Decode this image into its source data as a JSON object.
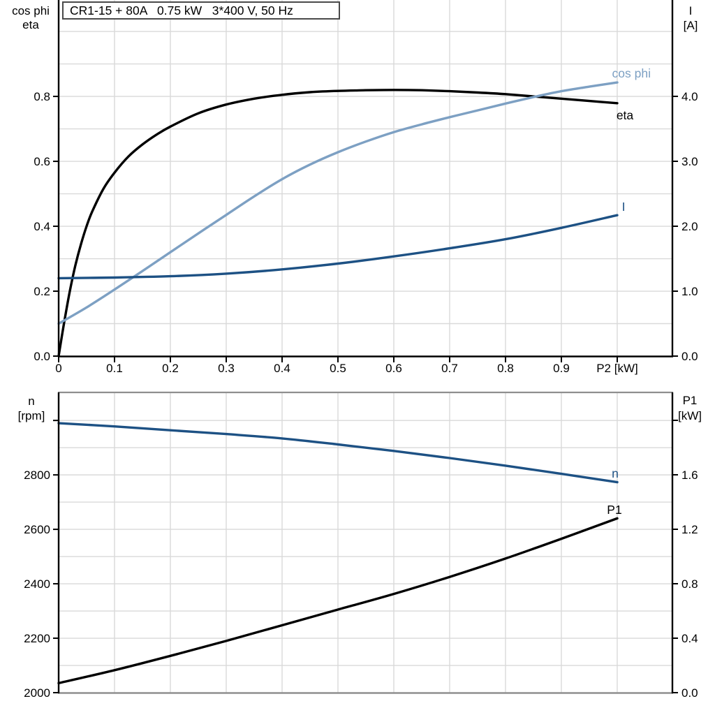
{
  "title": "CR1-15 + 80A   0.75 kW   3*400 V, 50 Hz",
  "colors": {
    "black": "#000000",
    "dark_blue": "#1d5184",
    "light_blue": "#7da0c3",
    "grid": "#d9d9d9",
    "panel_border": "#8f8f8f",
    "text": "#000000"
  },
  "chart_data": [
    {
      "type": "line",
      "title": "CR1-15 + 80A   0.75 kW   3*400 V, 50 Hz",
      "x_label": "P2 [kW]",
      "xlim": [
        0,
        1.0988
      ],
      "x_tick_values": [
        0,
        0.1,
        0.2,
        0.3,
        0.4,
        0.5,
        0.6,
        0.7,
        0.8,
        0.9,
        1.0
      ],
      "x_tick_labels": [
        "0",
        "0.1",
        "0.2",
        "0.3",
        "0.4",
        "0.5",
        "0.6",
        "0.7",
        "0.8",
        "0.9",
        ""
      ],
      "grid": true,
      "left_axis": {
        "label": [
          "cos phi",
          "eta"
        ],
        "lim": [
          0,
          1.097
        ],
        "tick_values": [
          0,
          0.2,
          0.4,
          0.6,
          0.8
        ],
        "tick_labels": [
          "0.0",
          "0.2",
          "0.4",
          "0.6",
          "0.8"
        ],
        "minor_step": 0.1
      },
      "right_axis": {
        "label": [
          "I",
          "[A]"
        ],
        "lim": [
          0,
          5.484
        ],
        "tick_values": [
          0,
          1,
          2,
          3,
          4
        ],
        "tick_labels": [
          "0.0",
          "1.0",
          "2.0",
          "3.0",
          "4.0"
        ]
      },
      "series": [
        {
          "name": "eta",
          "axis": "left",
          "color": "black",
          "x": [
            0,
            0.01,
            0.02,
            0.03,
            0.04,
            0.05,
            0.06,
            0.08,
            0.1,
            0.125,
            0.15,
            0.175,
            0.2,
            0.25,
            0.3,
            0.35,
            0.4,
            0.45,
            0.5,
            0.55,
            0.6,
            0.65,
            0.7,
            0.75,
            0.8,
            0.85,
            0.9,
            0.95,
            1.0
          ],
          "y": [
            0,
            0.105,
            0.2,
            0.28,
            0.345,
            0.4,
            0.445,
            0.515,
            0.565,
            0.615,
            0.652,
            0.682,
            0.707,
            0.748,
            0.775,
            0.793,
            0.805,
            0.813,
            0.817,
            0.819,
            0.82,
            0.819,
            0.816,
            0.812,
            0.807,
            0.8,
            0.793,
            0.786,
            0.779
          ]
        },
        {
          "name": "cos phi",
          "axis": "left",
          "color": "light_blue",
          "x": [
            0,
            0.05,
            0.1,
            0.15,
            0.2,
            0.25,
            0.3,
            0.35,
            0.4,
            0.45,
            0.5,
            0.55,
            0.6,
            0.65,
            0.7,
            0.75,
            0.8,
            0.85,
            0.9,
            0.95,
            1.0
          ],
          "y": [
            0.1,
            0.15,
            0.205,
            0.262,
            0.32,
            0.378,
            0.435,
            0.492,
            0.545,
            0.59,
            0.628,
            0.661,
            0.69,
            0.714,
            0.736,
            0.757,
            0.778,
            0.798,
            0.816,
            0.83,
            0.843
          ]
        },
        {
          "name": "I",
          "axis": "right",
          "color": "dark_blue",
          "x": [
            0,
            0.1,
            0.2,
            0.3,
            0.4,
            0.5,
            0.6,
            0.7,
            0.8,
            0.9,
            1.0
          ],
          "y": [
            1.2,
            1.21,
            1.23,
            1.27,
            1.335,
            1.425,
            1.535,
            1.66,
            1.8,
            1.975,
            2.17
          ]
        }
      ]
    },
    {
      "type": "line",
      "x_label": "",
      "xlim": [
        0,
        1.0988
      ],
      "x_tick_values": [],
      "x_tick_labels": [],
      "grid": true,
      "left_axis": {
        "label": [
          "n",
          "[rpm]"
        ],
        "lim": [
          2000,
          3103
        ],
        "tick_values": [
          2000,
          2200,
          2400,
          2600,
          2800,
          3000
        ],
        "tick_labels": [
          "2000",
          "2200",
          "2400",
          "2600",
          "2800",
          ""
        ],
        "minor_step": 100
      },
      "right_axis": {
        "label": [
          "P1",
          "[kW]"
        ],
        "lim": [
          0,
          2.205
        ],
        "tick_values": [
          0,
          0.4,
          0.8,
          1.2,
          1.6,
          2.0
        ],
        "tick_labels": [
          "0.0",
          "0.4",
          "0.8",
          "1.2",
          "1.6",
          ""
        ]
      },
      "series": [
        {
          "name": "n",
          "axis": "left",
          "color": "dark_blue",
          "x": [
            0,
            0.1,
            0.2,
            0.3,
            0.4,
            0.5,
            0.6,
            0.7,
            0.8,
            0.9,
            1.0
          ],
          "y": [
            2990,
            2978,
            2964,
            2950,
            2934,
            2912,
            2888,
            2862,
            2834,
            2804,
            2773
          ]
        },
        {
          "name": "P1",
          "axis": "right",
          "color": "black",
          "x": [
            0,
            0.1,
            0.2,
            0.3,
            0.4,
            0.5,
            0.6,
            0.7,
            0.8,
            0.9,
            1.0
          ],
          "y": [
            0.07,
            0.165,
            0.27,
            0.38,
            0.495,
            0.61,
            0.725,
            0.85,
            0.985,
            1.13,
            1.28
          ]
        }
      ]
    }
  ]
}
